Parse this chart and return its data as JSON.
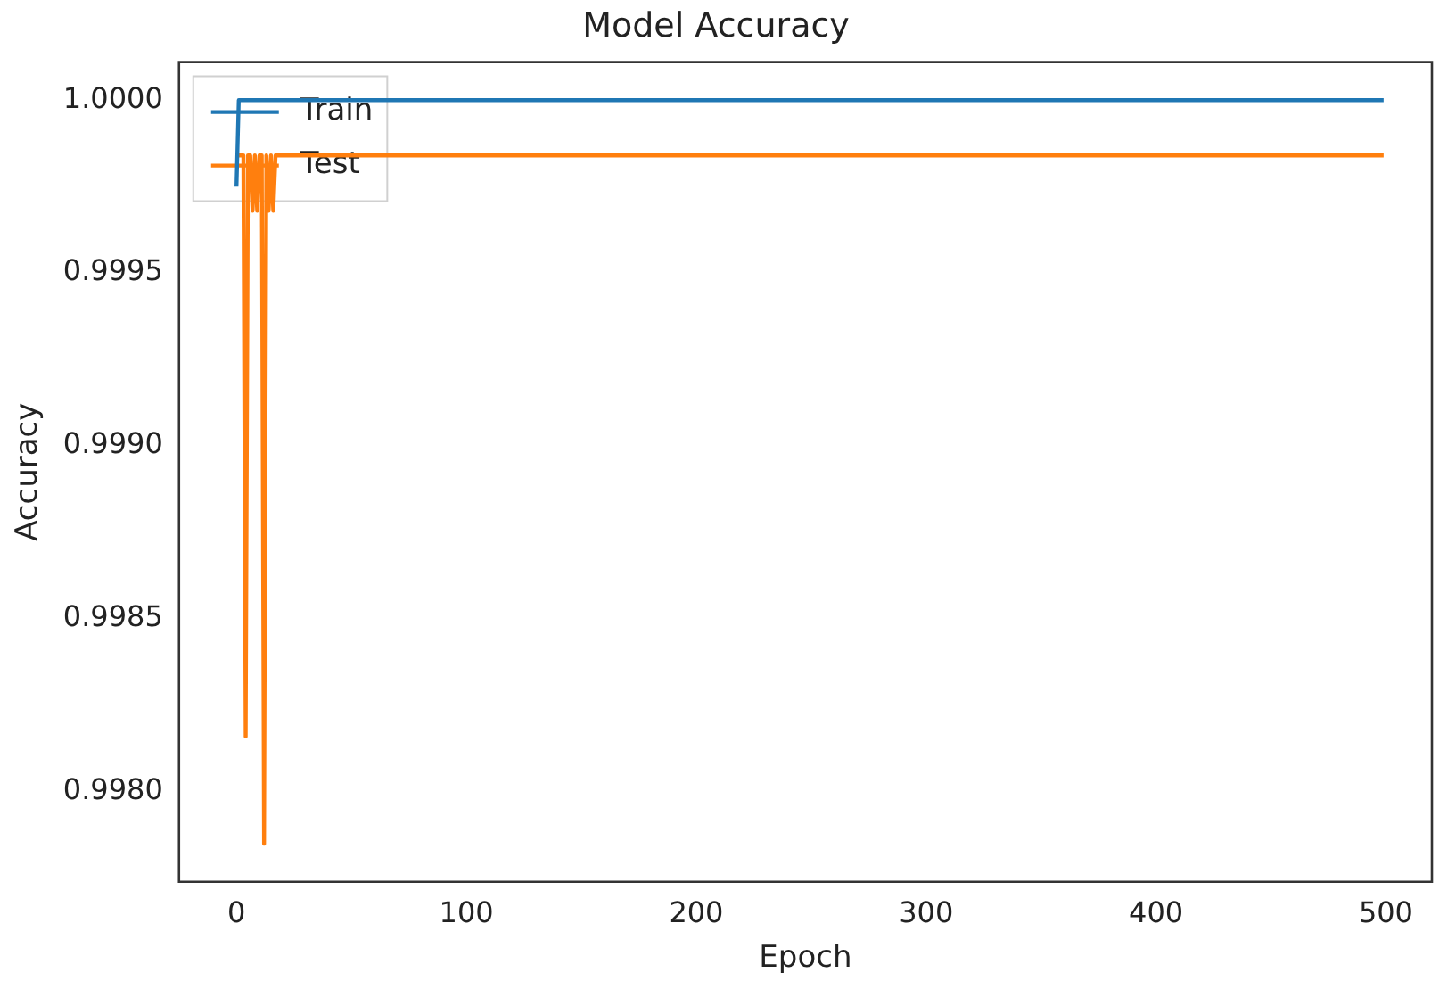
{
  "chart_data": {
    "type": "line",
    "title": "Model Accuracy",
    "xlabel": "Epoch",
    "ylabel": "Accuracy",
    "series": [
      {
        "name": "Train",
        "color": "#1f77b4",
        "x": [
          0,
          1,
          2,
          499
        ],
        "values": [
          0.99975,
          1.0,
          1.0,
          1.0
        ]
      },
      {
        "name": "Test",
        "color": "#ff7f0e",
        "x": [
          0,
          2,
          3,
          4,
          5,
          6,
          7,
          8,
          9,
          10,
          11,
          12,
          13,
          14,
          15,
          16,
          17,
          18,
          19,
          20,
          499
        ],
        "values": [
          0.99984,
          0.99984,
          0.99984,
          0.99816,
          0.99984,
          0.99984,
          0.99968,
          0.99984,
          0.99968,
          0.99984,
          0.99984,
          0.99785,
          0.99984,
          0.99968,
          0.99984,
          0.99968,
          0.99984,
          0.99984,
          0.99984,
          0.99984,
          0.99984
        ]
      }
    ],
    "xlim": [
      -25,
      520
    ],
    "xticks": [
      0,
      100,
      200,
      300,
      400,
      500
    ],
    "ylim": [
      0.99774,
      1.00011
    ],
    "yticks": [
      {
        "value": 0.998,
        "label": "0.9980"
      },
      0.9985,
      {
        "value": 0.999,
        "label": "0.9990"
      },
      0.9995,
      {
        "value": 1,
        "label": "1.0000"
      }
    ],
    "grid": false,
    "legend": "top left",
    "marker": "none",
    "line_style": "solid"
  }
}
